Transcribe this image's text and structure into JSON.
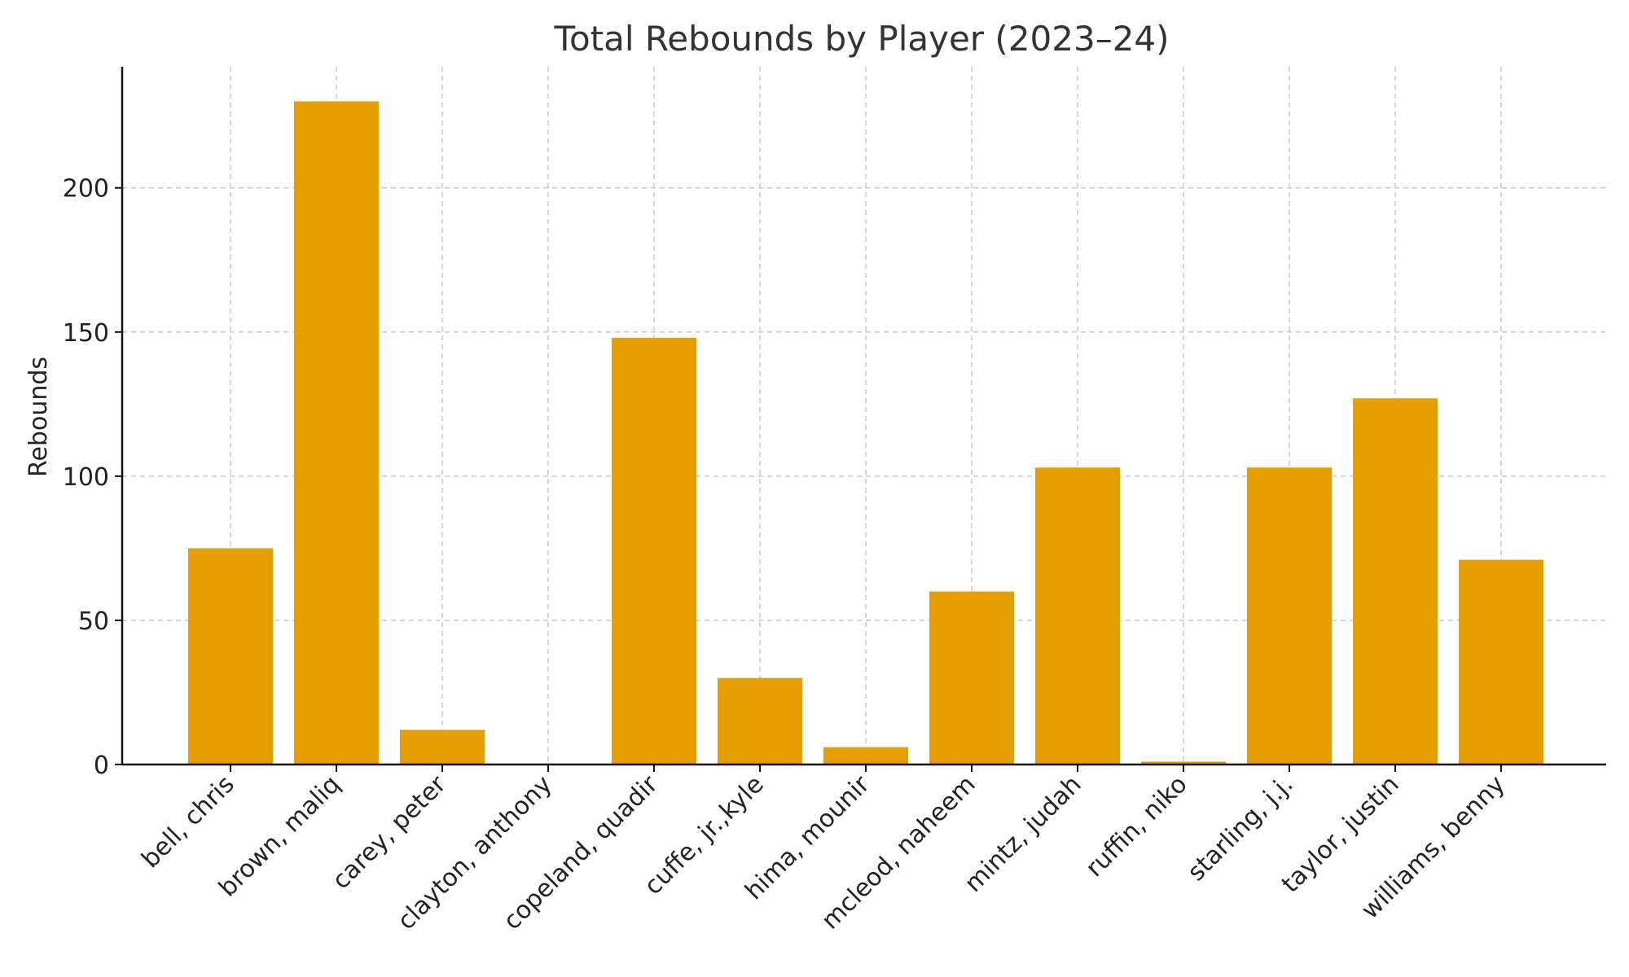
{
  "chart_data": {
    "type": "bar",
    "title": "Total Rebounds by Player (2023–24)",
    "xlabel": "",
    "ylabel": "Rebounds",
    "categories": [
      "bell, chris",
      "brown, maliq",
      "carey, peter",
      "clayton, anthony",
      "copeland, quadir",
      "cuffe, jr.,kyle",
      "hima, mounir",
      "mcleod, naheem",
      "mintz, judah",
      "ruffin, niko",
      "starling, j.j.",
      "taylor, justin",
      "williams, benny"
    ],
    "values": [
      75,
      230,
      12,
      0,
      148,
      30,
      6,
      60,
      103,
      1,
      103,
      127,
      71
    ],
    "ylim": [
      0,
      242
    ],
    "yticks": [
      0,
      50,
      100,
      150,
      200
    ],
    "grid": true,
    "legend": "none",
    "bar_color": "#E69F00"
  }
}
